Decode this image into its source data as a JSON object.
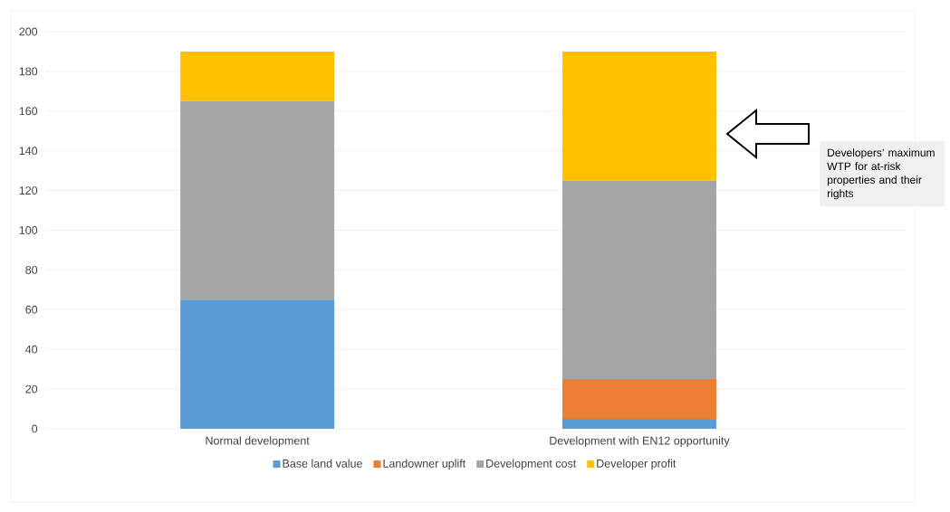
{
  "chart_data": {
    "type": "bar",
    "stacked": true,
    "categories": [
      "Normal development",
      "Development with EN12 opportunity"
    ],
    "series": [
      {
        "name": "Base land value",
        "color": "#5b9bd5",
        "values": [
          65,
          5
        ]
      },
      {
        "name": "Landowner uplift",
        "color": "#ed7d31",
        "values": [
          0,
          20
        ]
      },
      {
        "name": "Development cost",
        "color": "#a5a5a5",
        "values": [
          100,
          100
        ]
      },
      {
        "name": "Developer profit",
        "color": "#ffc000",
        "values": [
          25,
          65
        ]
      }
    ],
    "ylim": [
      0,
      200
    ],
    "yticks": [
      0,
      20,
      40,
      60,
      80,
      100,
      120,
      140,
      160,
      180,
      200
    ],
    "grid": "y",
    "legend": "bottom",
    "annotations": [
      "Developers’ maximum WTP for at-risk properties and their rights"
    ]
  }
}
